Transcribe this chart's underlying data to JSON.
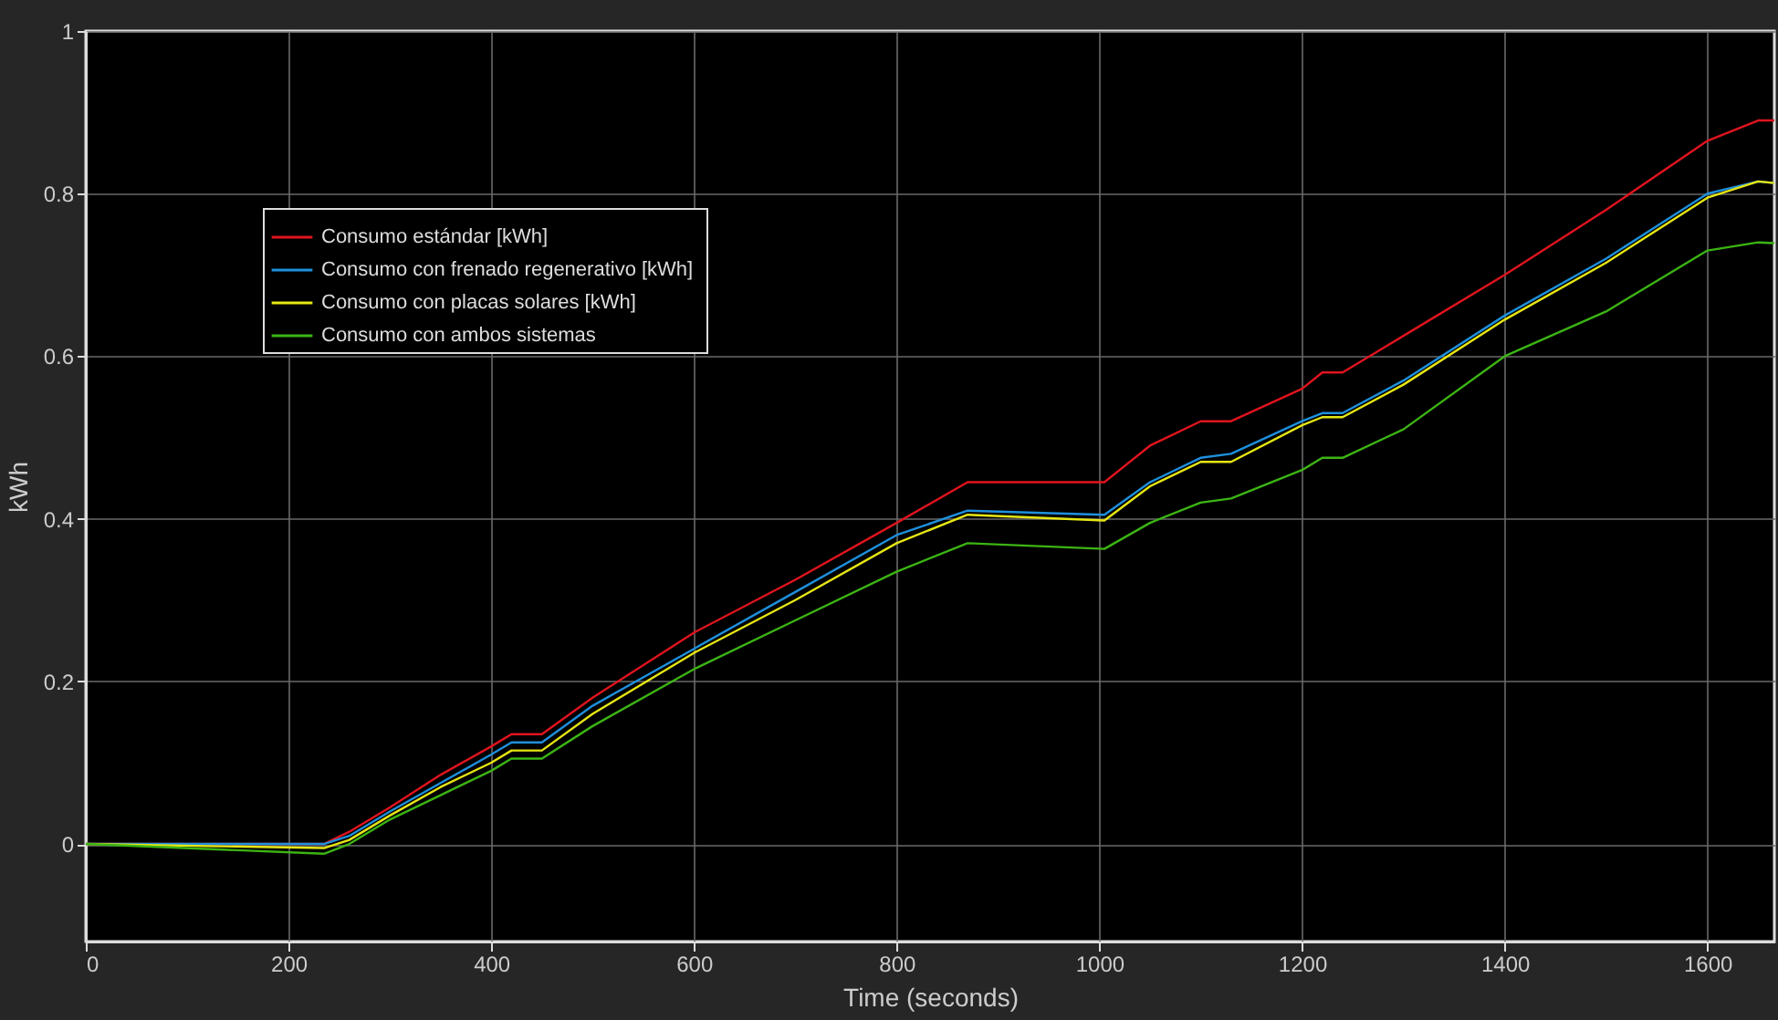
{
  "chart_data": {
    "type": "line",
    "xlabel": "Time (seconds)",
    "ylabel": "kWh",
    "xlim": [
      0,
      1666
    ],
    "ylim": [
      -0.12,
      1
    ],
    "xticks": [
      0,
      200,
      400,
      600,
      800,
      1000,
      1200,
      1400,
      1600
    ],
    "yticks": [
      0,
      0.2,
      0.4,
      0.6,
      0.8,
      1
    ],
    "grid": true,
    "legend": "top left",
    "line_style": "solid",
    "marker": "none",
    "x": [
      0,
      235,
      260,
      300,
      350,
      400,
      420,
      450,
      500,
      600,
      700,
      800,
      870,
      1005,
      1050,
      1100,
      1130,
      1200,
      1220,
      1240,
      1300,
      1400,
      1500,
      1600,
      1650,
      1666
    ],
    "series": [
      {
        "name": "Consumo estándar [kWh]",
        "color": "#e0141e",
        "values": [
          0,
          0,
          0.015,
          0.045,
          0.085,
          0.12,
          0.135,
          0.135,
          0.18,
          0.26,
          0.325,
          0.395,
          0.445,
          0.445,
          0.49,
          0.52,
          0.52,
          0.56,
          0.58,
          0.58,
          0.625,
          0.7,
          0.78,
          0.865,
          0.89,
          0.89
        ]
      },
      {
        "name": "Consumo con frenado regenerativo  [kWh]",
        "color": "#1e90dc",
        "values": [
          0,
          0,
          0.01,
          0.04,
          0.075,
          0.11,
          0.125,
          0.125,
          0.17,
          0.24,
          0.31,
          0.38,
          0.41,
          0.405,
          0.445,
          0.475,
          0.48,
          0.52,
          0.53,
          0.53,
          0.57,
          0.65,
          0.72,
          0.8,
          0.815,
          0.813
        ]
      },
      {
        "name": "Consumo con placas solares [kWh]",
        "color": "#e6e614",
        "values": [
          0,
          -0.005,
          0.005,
          0.035,
          0.07,
          0.1,
          0.115,
          0.115,
          0.16,
          0.235,
          0.3,
          0.37,
          0.405,
          0.398,
          0.44,
          0.47,
          0.47,
          0.515,
          0.525,
          0.525,
          0.565,
          0.645,
          0.715,
          0.795,
          0.815,
          0.813
        ]
      },
      {
        "name": "Consumo con ambos sistemas",
        "color": "#3cb414",
        "values": [
          0,
          -0.012,
          0,
          0.03,
          0.06,
          0.09,
          0.105,
          0.105,
          0.145,
          0.215,
          0.275,
          0.335,
          0.37,
          0.363,
          0.395,
          0.42,
          0.425,
          0.46,
          0.475,
          0.475,
          0.51,
          0.6,
          0.655,
          0.73,
          0.74,
          0.739
        ]
      }
    ]
  }
}
